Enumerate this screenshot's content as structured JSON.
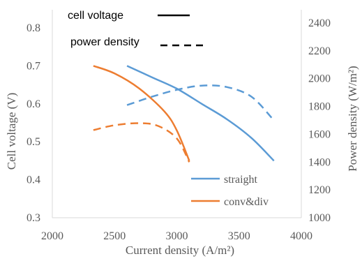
{
  "chart_data": {
    "type": "line",
    "xlabel": "Current density (A/m²)",
    "ylabel_left": "Cell voltage (V)",
    "ylabel_right": "Power density (W/m²)",
    "xlim": [
      2000,
      4000
    ],
    "x_ticks": [
      2000,
      2500,
      3000,
      3500,
      4000
    ],
    "ylim_left": [
      0.3,
      0.85
    ],
    "y_ticks_left": [
      0.3,
      0.4,
      0.5,
      0.6,
      0.7,
      0.8
    ],
    "ylim_right": [
      1000,
      2500
    ],
    "y_ticks_right": [
      1000,
      1200,
      1400,
      1600,
      1800,
      2000,
      2200,
      2400
    ],
    "grid": false,
    "style_legend": {
      "solid_label": "cell voltage",
      "dashed_label": "power density"
    },
    "series_legend": [
      {
        "name": "straight",
        "color": "#5b9bd5"
      },
      {
        "name": "conv&div",
        "color": "#ed7d31"
      }
    ],
    "series": [
      {
        "name": "straight",
        "measure": "cell voltage",
        "axis": "left",
        "style": "solid",
        "color": "#5b9bd5",
        "points": [
          [
            2600,
            0.7
          ],
          [
            2800,
            0.67
          ],
          [
            3000,
            0.64
          ],
          [
            3200,
            0.6
          ],
          [
            3400,
            0.56
          ],
          [
            3600,
            0.51
          ],
          [
            3780,
            0.45
          ]
        ]
      },
      {
        "name": "straight",
        "measure": "power density",
        "axis": "right",
        "style": "dashed",
        "color": "#5b9bd5",
        "points": [
          [
            2600,
            1810
          ],
          [
            2800,
            1870
          ],
          [
            3000,
            1920
          ],
          [
            3200,
            1950
          ],
          [
            3400,
            1940
          ],
          [
            3600,
            1870
          ],
          [
            3780,
            1700
          ]
        ]
      },
      {
        "name": "conv&div",
        "measure": "cell voltage",
        "axis": "left",
        "style": "solid",
        "color": "#ed7d31",
        "points": [
          [
            2330,
            0.7
          ],
          [
            2500,
            0.68
          ],
          [
            2700,
            0.64
          ],
          [
            2900,
            0.58
          ],
          [
            3000,
            0.53
          ],
          [
            3100,
            0.45
          ]
        ]
      },
      {
        "name": "conv&div",
        "measure": "power density",
        "axis": "right",
        "style": "dashed",
        "color": "#ed7d31",
        "points": [
          [
            2330,
            1630
          ],
          [
            2500,
            1665
          ],
          [
            2700,
            1680
          ],
          [
            2850,
            1660
          ],
          [
            3000,
            1570
          ],
          [
            3100,
            1400
          ]
        ]
      }
    ]
  }
}
